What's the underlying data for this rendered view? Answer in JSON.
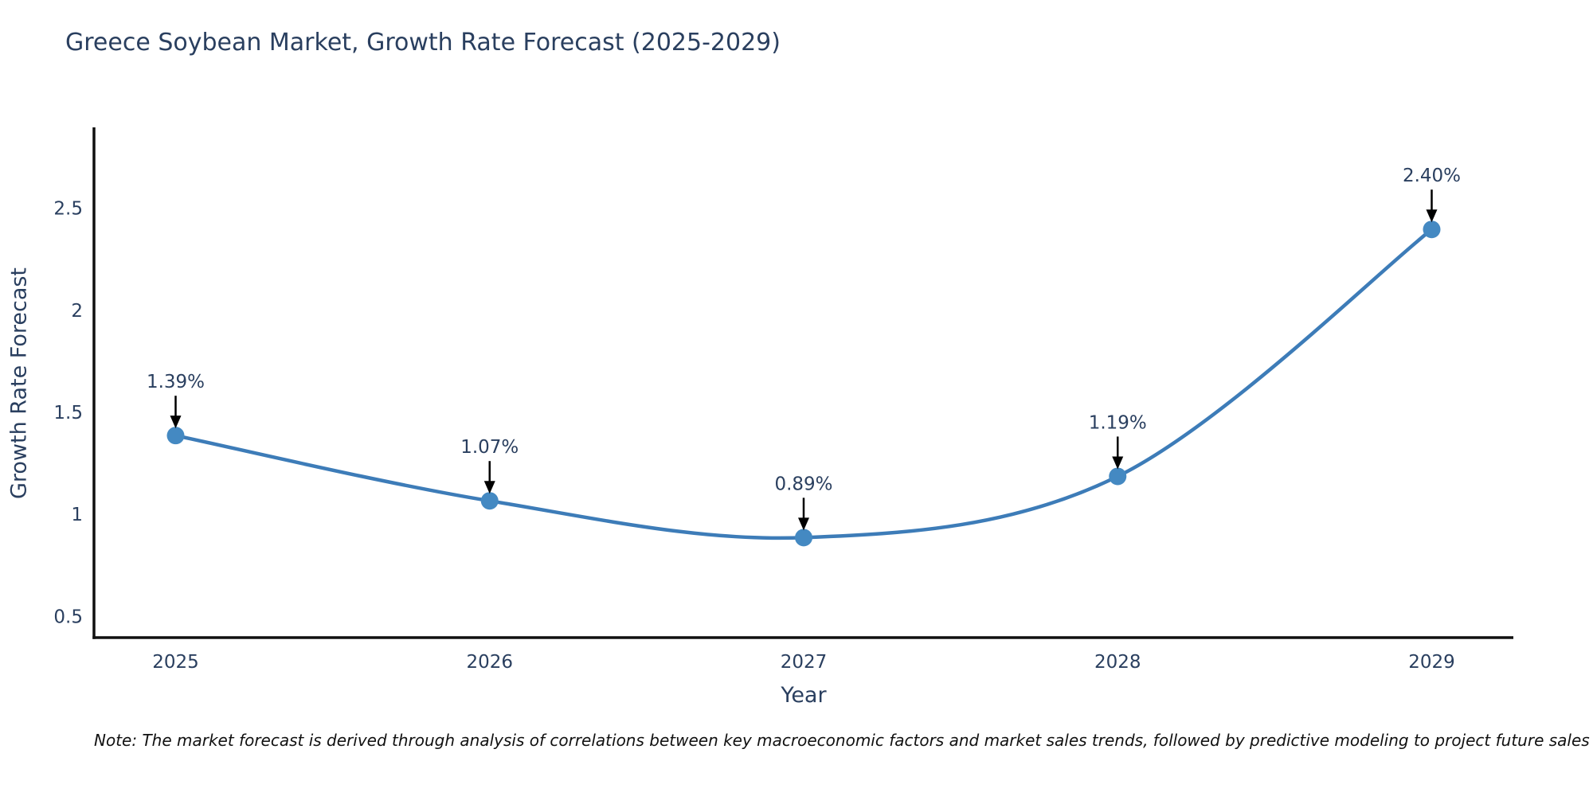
{
  "chart_data": {
    "type": "line",
    "title": "Greece Soybean Market, Growth Rate Forecast (2025-2029)",
    "xlabel": "Year",
    "ylabel": "Growth Rate Forecast",
    "categories": [
      "2025",
      "2026",
      "2027",
      "2028",
      "2029"
    ],
    "x": [
      2025,
      2026,
      2027,
      2028,
      2029
    ],
    "series": [
      {
        "name": "Growth Rate Forecast",
        "values": [
          1.39,
          1.07,
          0.89,
          1.19,
          2.4
        ]
      }
    ],
    "point_labels": [
      "1.39%",
      "1.07%",
      "0.89%",
      "1.19%",
      "2.40%"
    ],
    "y_ticks": [
      0.5,
      1,
      1.5,
      2,
      2.5
    ],
    "y_tick_labels": [
      "0.5",
      "1",
      "1.5",
      "2",
      "2.5"
    ],
    "xlim": [
      2024.74,
      2029.26
    ],
    "ylim": [
      0.4,
      2.9
    ],
    "grid": false,
    "legend": false,
    "curve": "spline",
    "colors": {
      "line": "#3d7cb8",
      "marker": "#4489c2",
      "axis": "#101010",
      "tick_text": "#2a3f5f",
      "annotation_text": "#2a3f5f",
      "annotation_arrow": "#000000"
    }
  },
  "note": "Note: The market forecast is derived through analysis of correlations between key macroeconomic factors and market sales trends, followed by predictive modeling to project future sales"
}
